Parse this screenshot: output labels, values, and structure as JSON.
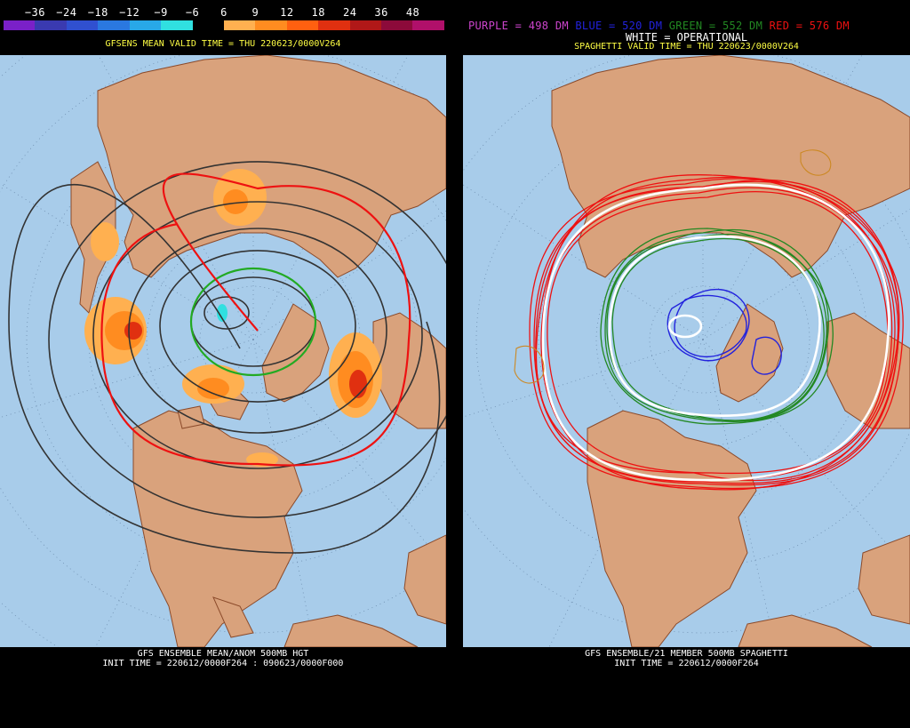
{
  "left": {
    "colorbar": {
      "labels": [
        "−36",
        "−24",
        "−18",
        "−12",
        "−9",
        "−6",
        "6",
        "9",
        "12",
        "18",
        "24",
        "36",
        "48"
      ],
      "colors": [
        "#7a20c8",
        "#3a3ab0",
        "#3050d0",
        "#2a78e0",
        "#28a8e8",
        "#30e0e0",
        "#000000",
        "#ffb050",
        "#ff8c20",
        "#ff6010",
        "#e03010",
        "#b01818",
        "#8c0a3a",
        "#b0106a"
      ]
    },
    "valid_title": "GFSENS MEAN VALID TIME = THU 220623/0000V264",
    "footer_line1": "GFS ENSEMBLE MEAN/ANOM 500MB HGT",
    "footer_line2": "INIT TIME = 220612/0000F264 : 090623/0000F000"
  },
  "right": {
    "legend": {
      "purple": "PURPLE = 498 DM",
      "blue": "BLUE = 520 DM",
      "green": "GREEN = 552 DM",
      "red": "RED = 576 DM",
      "white": "WHITE = OPERATIONAL"
    },
    "valid_title": "SPAGHETTI VALID TIME = THU 220623/0000V264",
    "footer_line1": "GFS ENSEMBLE/21 MEMBER 500MB SPAGHETTI",
    "footer_line2": "INIT TIME = 220612/0000F264"
  },
  "colors": {
    "ocean": "#a8ccea",
    "land": "#d9a27c",
    "border": "#8b4a2a",
    "purple": "#cc44cc",
    "blue": "#2222dd",
    "green": "#228822",
    "red": "#ee1111",
    "white": "#ffffff"
  }
}
